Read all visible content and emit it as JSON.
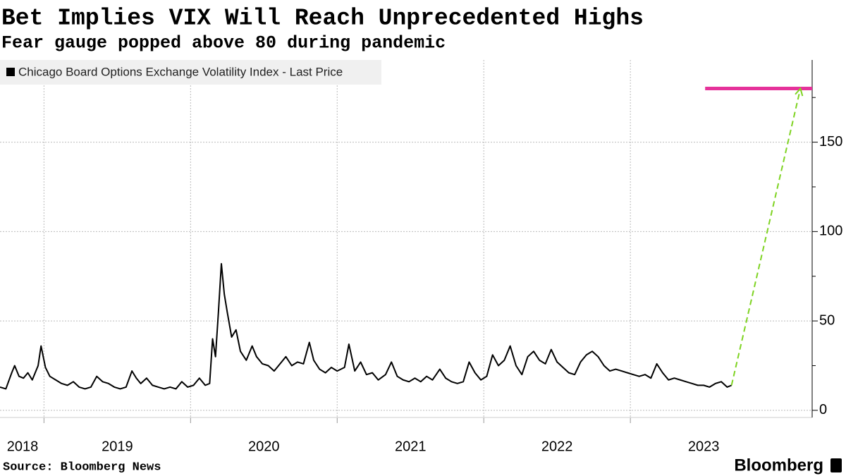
{
  "chart_data": {
    "type": "line",
    "title": "Bet Implies VIX Will Reach Unprecedented Highs",
    "subtitle": "Fear gauge popped above 80 during pandemic",
    "source": "Source: Bloomberg News",
    "logo": "Bloomberg",
    "xlim": [
      2018.7,
      2024.24
    ],
    "xticks": [
      2018,
      2019,
      2020,
      2021,
      2022,
      2023
    ],
    "ylim": [
      -4,
      196
    ],
    "yticks": [
      0,
      50,
      100,
      150
    ],
    "yminorticks": [
      25,
      75,
      125,
      175
    ],
    "grid": true,
    "legend": "top-left",
    "series": [
      {
        "name": "Chicago Board Options Exchange Volatility Index - Last Price",
        "color": "#000000",
        "x": [
          2018.7,
          2018.74,
          2018.78,
          2018.8,
          2018.83,
          2018.86,
          2018.89,
          2018.92,
          2018.96,
          2018.98,
          2019.01,
          2019.04,
          2019.08,
          2019.12,
          2019.16,
          2019.2,
          2019.24,
          2019.28,
          2019.32,
          2019.36,
          2019.4,
          2019.44,
          2019.48,
          2019.52,
          2019.56,
          2019.6,
          2019.63,
          2019.66,
          2019.7,
          2019.74,
          2019.78,
          2019.82,
          2019.86,
          2019.9,
          2019.94,
          2019.98,
          2020.02,
          2020.06,
          2020.1,
          2020.13,
          2020.15,
          2020.17,
          2020.19,
          2020.21,
          2020.23,
          2020.25,
          2020.28,
          2020.31,
          2020.34,
          2020.38,
          2020.42,
          2020.45,
          2020.49,
          2020.53,
          2020.57,
          2020.61,
          2020.65,
          2020.69,
          2020.73,
          2020.77,
          2020.81,
          2020.84,
          2020.88,
          2020.92,
          2020.96,
          2021.0,
          2021.05,
          2021.08,
          2021.12,
          2021.16,
          2021.2,
          2021.24,
          2021.28,
          2021.33,
          2021.37,
          2021.41,
          2021.45,
          2021.49,
          2021.53,
          2021.57,
          2021.61,
          2021.65,
          2021.7,
          2021.74,
          2021.78,
          2021.82,
          2021.86,
          2021.9,
          2021.94,
          2021.98,
          2022.02,
          2022.06,
          2022.1,
          2022.14,
          2022.18,
          2022.22,
          2022.26,
          2022.3,
          2022.34,
          2022.38,
          2022.42,
          2022.46,
          2022.5,
          2022.54,
          2022.58,
          2022.62,
          2022.66,
          2022.7,
          2022.74,
          2022.78,
          2022.82,
          2022.86,
          2022.9,
          2022.94,
          2022.98,
          2023.02,
          2023.06,
          2023.1,
          2023.14,
          2023.18,
          2023.22,
          2023.26,
          2023.3,
          2023.34,
          2023.38,
          2023.42,
          2023.46,
          2023.5,
          2023.54,
          2023.58,
          2023.62,
          2023.66,
          2023.69
        ],
        "values": [
          13,
          12,
          21,
          25,
          19,
          18,
          21,
          17,
          25,
          36,
          24,
          19,
          17,
          15,
          14,
          16,
          13,
          12,
          13,
          19,
          16,
          15,
          13,
          12,
          13,
          22,
          18,
          15,
          18,
          14,
          13,
          12,
          13,
          12,
          16,
          13,
          14,
          18,
          14,
          15,
          40,
          30,
          55,
          82,
          65,
          55,
          41,
          45,
          33,
          28,
          36,
          30,
          26,
          25,
          22,
          26,
          30,
          25,
          27,
          26,
          38,
          28,
          23,
          21,
          24,
          22,
          24,
          37,
          22,
          27,
          20,
          21,
          17,
          20,
          27,
          19,
          17,
          16,
          18,
          16,
          19,
          17,
          23,
          18,
          16,
          15,
          16,
          27,
          21,
          17,
          19,
          31,
          25,
          28,
          36,
          25,
          20,
          30,
          33,
          28,
          26,
          34,
          27,
          24,
          21,
          20,
          27,
          31,
          33,
          30,
          25,
          22,
          23,
          22,
          21,
          20,
          19,
          20,
          18,
          26,
          21,
          17,
          18,
          17,
          16,
          15,
          14,
          14,
          13,
          15,
          16,
          13,
          14
        ]
      }
    ],
    "projection": {
      "x": [
        2023.69,
        2024.16
      ],
      "values": [
        14,
        180
      ],
      "color": "#7ed321"
    },
    "target": {
      "x": [
        2023.51,
        2024.24
      ],
      "value": 180,
      "color": "#e5329a"
    }
  }
}
